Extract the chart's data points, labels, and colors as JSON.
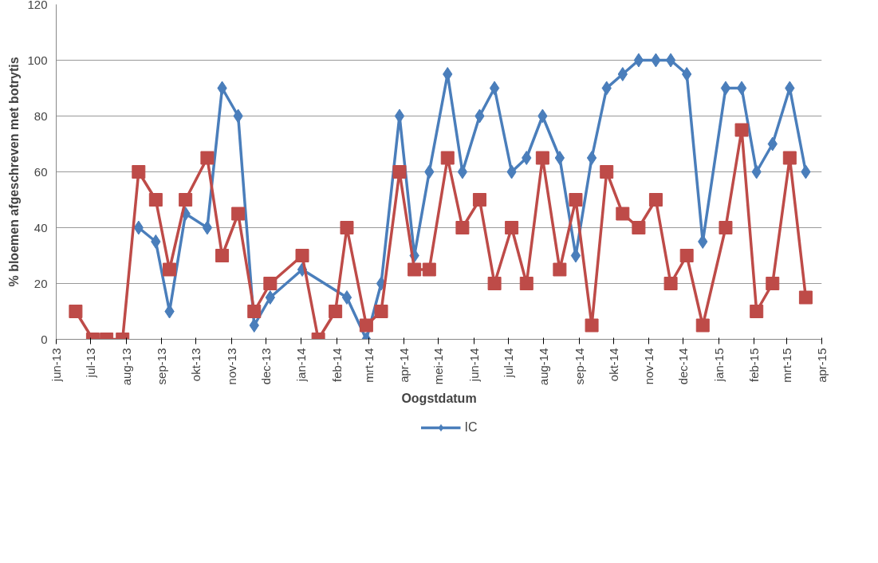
{
  "chart_data": {
    "type": "line",
    "xlabel": "Oogstdatum",
    "ylabel": "% bloemen afgeschreven met botrytis",
    "xlim": [
      "2013-06-01",
      "2015-04-01"
    ],
    "xticks": [
      {
        "value": "2013-06-01",
        "label": "jun-13"
      },
      {
        "value": "2013-07-01",
        "label": "jul-13"
      },
      {
        "value": "2013-08-01",
        "label": "aug-13"
      },
      {
        "value": "2013-09-01",
        "label": "sep-13"
      },
      {
        "value": "2013-10-01",
        "label": "okt-13"
      },
      {
        "value": "2013-11-01",
        "label": "nov-13"
      },
      {
        "value": "2013-12-01",
        "label": "dec-13"
      },
      {
        "value": "2014-01-01",
        "label": "jan-14"
      },
      {
        "value": "2014-02-01",
        "label": "feb-14"
      },
      {
        "value": "2014-03-01",
        "label": "mrt-14"
      },
      {
        "value": "2014-04-01",
        "label": "apr-14"
      },
      {
        "value": "2014-05-01",
        "label": "mei-14"
      },
      {
        "value": "2014-06-01",
        "label": "jun-14"
      },
      {
        "value": "2014-07-01",
        "label": "jul-14"
      },
      {
        "value": "2014-08-01",
        "label": "aug-14"
      },
      {
        "value": "2014-09-01",
        "label": "sep-14"
      },
      {
        "value": "2014-10-01",
        "label": "okt-14"
      },
      {
        "value": "2014-11-01",
        "label": "nov-14"
      },
      {
        "value": "2014-12-01",
        "label": "dec-14"
      },
      {
        "value": "2015-01-01",
        "label": "jan-15"
      },
      {
        "value": "2015-02-01",
        "label": "feb-15"
      },
      {
        "value": "2015-03-01",
        "label": "mrt-15"
      },
      {
        "value": "2015-04-01",
        "label": "apr-15"
      }
    ],
    "ylim": [
      0,
      120
    ],
    "yticks": [
      0,
      20,
      40,
      60,
      80,
      100,
      120
    ],
    "grid": "y",
    "legend": "bottom",
    "series": [
      {
        "name": "IC",
        "color": "#4a7ebb",
        "marker": "diamond",
        "x": [
          "2013-08-12",
          "2013-08-27",
          "2013-09-08",
          "2013-09-22",
          "2013-10-11",
          "2013-10-24",
          "2013-11-07",
          "2013-11-21",
          "2013-12-05",
          "2014-01-02",
          "2014-02-10",
          "2014-02-27",
          "2014-03-12",
          "2014-03-28",
          "2014-04-10",
          "2014-04-23",
          "2014-05-09",
          "2014-05-22",
          "2014-06-06",
          "2014-06-19",
          "2014-07-04",
          "2014-07-17",
          "2014-07-31",
          "2014-08-15",
          "2014-08-29",
          "2014-09-12",
          "2014-09-25",
          "2014-10-09",
          "2014-10-23",
          "2014-11-07",
          "2014-11-20",
          "2014-12-04",
          "2014-12-18",
          "2015-01-07",
          "2015-01-21",
          "2015-02-03",
          "2015-02-17",
          "2015-03-04",
          "2015-03-18"
        ],
        "values": [
          40,
          35,
          10,
          45,
          40,
          90,
          80,
          5,
          15,
          25,
          15,
          0,
          20,
          80,
          30,
          60,
          95,
          60,
          80,
          90,
          60,
          65,
          80,
          65,
          30,
          65,
          90,
          95,
          100,
          100,
          100,
          95,
          35,
          90,
          90,
          60,
          70,
          90,
          60
        ]
      },
      {
        "color": "#be4b48",
        "marker": "square",
        "x": [
          "2013-06-18",
          "2013-07-03",
          "2013-07-15",
          "2013-07-29",
          "2013-08-12",
          "2013-08-27",
          "2013-09-08",
          "2013-09-22",
          "2013-10-11",
          "2013-10-24",
          "2013-11-07",
          "2013-11-21",
          "2013-12-05",
          "2014-01-02",
          "2014-01-16",
          "2014-01-31",
          "2014-02-10",
          "2014-02-27",
          "2014-03-12",
          "2014-03-28",
          "2014-04-10",
          "2014-04-23",
          "2014-05-09",
          "2014-05-22",
          "2014-06-06",
          "2014-06-19",
          "2014-07-04",
          "2014-07-17",
          "2014-07-31",
          "2014-08-15",
          "2014-08-29",
          "2014-09-12",
          "2014-09-25",
          "2014-10-09",
          "2014-10-23",
          "2014-11-07",
          "2014-11-20",
          "2014-12-04",
          "2014-12-18",
          "2015-01-07",
          "2015-01-21",
          "2015-02-03",
          "2015-02-17",
          "2015-03-04",
          "2015-03-18"
        ],
        "values": [
          10,
          0,
          0,
          0,
          60,
          50,
          25,
          50,
          65,
          30,
          45,
          10,
          20,
          30,
          0,
          10,
          40,
          5,
          10,
          60,
          25,
          25,
          65,
          40,
          50,
          20,
          40,
          20,
          65,
          25,
          50,
          5,
          60,
          45,
          40,
          50,
          20,
          30,
          5,
          40,
          75,
          10,
          20,
          65,
          15
        ]
      }
    ]
  }
}
